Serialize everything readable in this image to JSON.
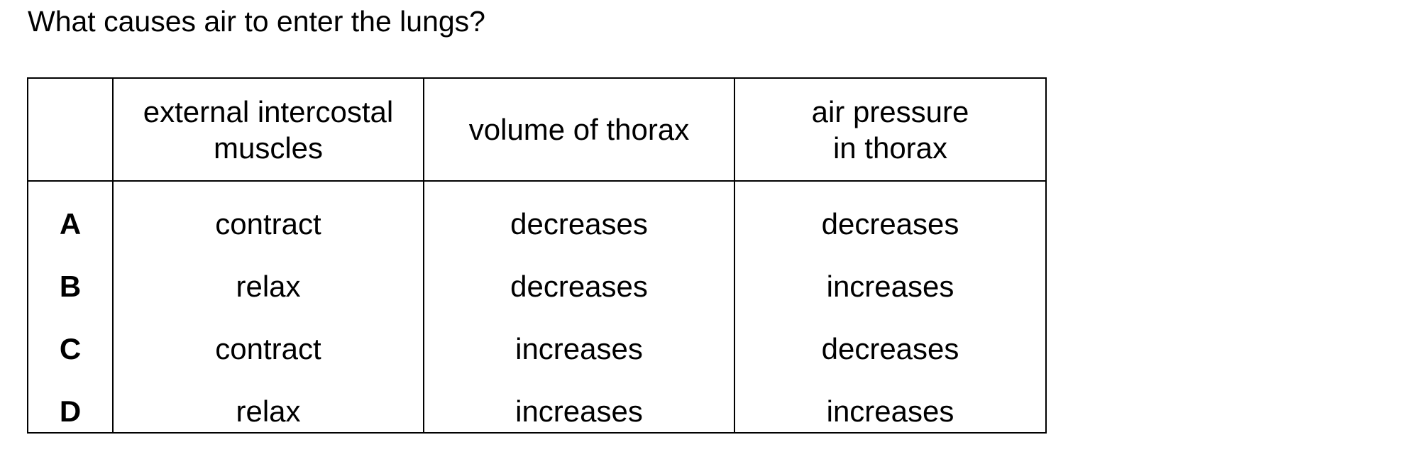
{
  "question": {
    "text": "What causes air to enter the lungs?"
  },
  "table": {
    "headers": [
      "",
      "external intercostal\nmuscles",
      "volume of thorax",
      "air pressure\nin thorax"
    ],
    "rows": [
      {
        "option": "A",
        "muscles": "contract",
        "volume": "decreases",
        "pressure": "decreases"
      },
      {
        "option": "B",
        "muscles": "relax",
        "volume": "decreases",
        "pressure": "increases"
      },
      {
        "option": "C",
        "muscles": "contract",
        "volume": "increases",
        "pressure": "decreases"
      },
      {
        "option": "D",
        "muscles": "relax",
        "volume": "increases",
        "pressure": "increases"
      }
    ]
  }
}
